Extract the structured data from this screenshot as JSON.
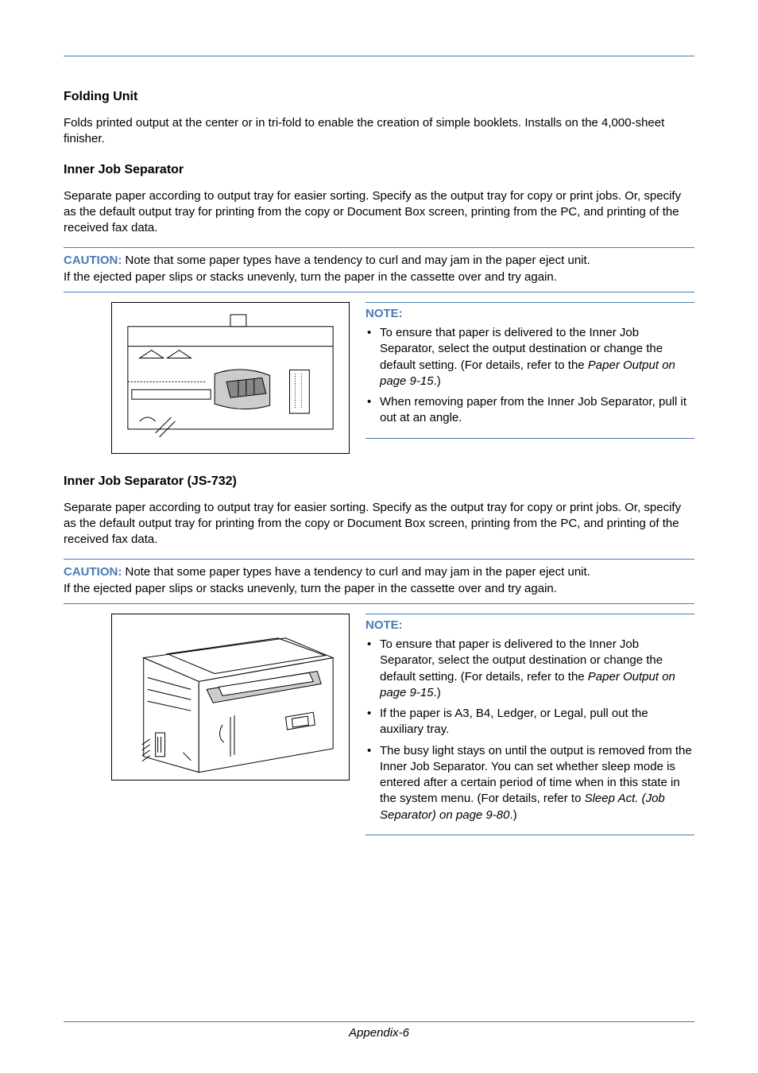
{
  "colors": {
    "rule": "#4a7ab8",
    "caution_label": "#4a7ab8",
    "note_label": "#4a7ab8",
    "text": "#000000",
    "background": "#ffffff"
  },
  "typography": {
    "body_font": "Arial, Helvetica, sans-serif",
    "body_size_pt": 11,
    "heading_size_pt": 12,
    "heading_weight": "bold"
  },
  "sections": {
    "folding_unit": {
      "heading": "Folding Unit",
      "body": "Folds printed output at the center or in tri-fold to enable the creation of simple booklets. Installs on the 4,000-sheet finisher."
    },
    "inner_sep1": {
      "heading": "Inner Job Separator",
      "body": "Separate paper according to output tray for easier sorting. Specify as the output tray for copy or print jobs. Or, specify as the default output tray for printing from the copy or Document Box screen, printing from the PC, and printing of the received fax data.",
      "caution_label": "CAUTION:",
      "caution_body": " Note that some paper types have a tendency to curl and may jam in the paper eject unit.\nIf the ejected paper slips or stacks unevenly, turn the paper in the cassette over and try again.",
      "note_label": "NOTE:",
      "note_items": [
        {
          "pre": "To ensure that paper is delivered to the Inner Job Separator, select the output destination or change the default setting. (For details, refer to the ",
          "ital": "Paper Output on page 9-15",
          "post": ".)"
        },
        {
          "pre": "When removing paper from the Inner Job Separator, pull it out at an angle.",
          "ital": "",
          "post": ""
        }
      ]
    },
    "inner_sep2": {
      "heading": "Inner Job Separator (JS-732)",
      "body": "Separate paper according to output tray for easier sorting. Specify as the output tray for copy or print jobs. Or, specify as the default output tray for printing from the copy or Document Box screen, printing from the PC, and printing of the received fax data.",
      "caution_label": "CAUTION:",
      "caution_body": " Note that some paper types have a tendency to curl and may jam in the paper eject unit.\nIf the ejected paper slips or stacks unevenly, turn the paper in the cassette over and try again.",
      "note_label": "NOTE:",
      "note_items": [
        {
          "pre": "To ensure that paper is delivered to the Inner Job Separator, select the output destination or change the default setting. (For details, refer to the ",
          "ital": "Paper Output on page 9-15",
          "post": ".)"
        },
        {
          "pre": "If the paper is A3, B4, Ledger, or Legal, pull out the auxiliary tray.",
          "ital": "",
          "post": ""
        },
        {
          "pre": "The busy light stays on until the output is removed from the Inner Job Separator. You can set whether sleep mode is entered after a certain period of time when in this state in the system menu. (For details, refer to ",
          "ital": "Sleep Act. (Job Separator) on page 9-80",
          "post": ".)"
        }
      ]
    }
  },
  "footer": "Appendix-6"
}
